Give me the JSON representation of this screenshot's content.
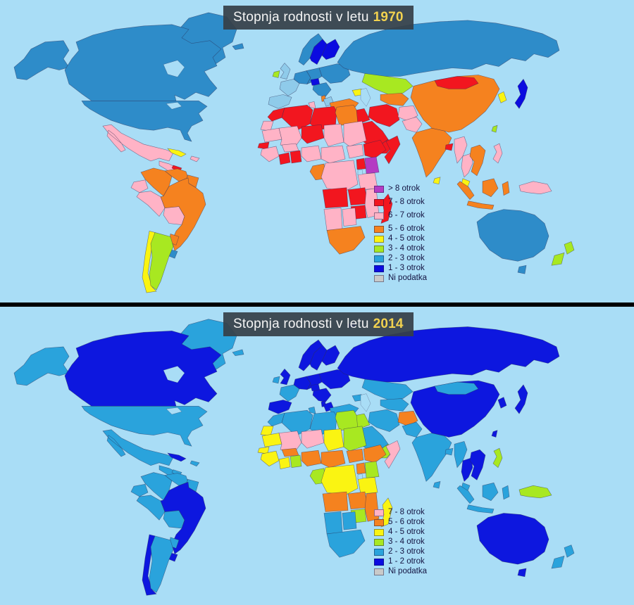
{
  "ocean_color": "#A9DDF6",
  "divider_color": "#000000",
  "title_bar": {
    "bg": "rgba(54,64,72,0.93)",
    "text_color": "#F4F4F4",
    "year_color": "#F2D24F"
  },
  "maps": [
    {
      "year": "1970",
      "title_prefix": "Stopnja rodnosti v letu",
      "legend": [
        {
          "key": "gt8",
          "label": "> 8 otrok",
          "color": "#B43BC3"
        },
        {
          "key": "c78",
          "label": "7 - 8 otrok",
          "color": "#F2161F"
        },
        {
          "key": "c67",
          "label": "6 - 7 otrok",
          "color": "#FFB3C6"
        },
        {
          "key": "c56",
          "label": "5 - 6 otrok",
          "color": "#F5821F"
        },
        {
          "key": "c45",
          "label": "4 - 5 otrok",
          "color": "#FAF412"
        },
        {
          "key": "c34",
          "label": "3 - 4 otrok",
          "color": "#A8E821"
        },
        {
          "key": "c23",
          "label": "2 - 3 otrok",
          "color": "#2AA3DC"
        },
        {
          "key": "c13",
          "label": "1 - 3 otrok",
          "color": "#0B0BE0"
        },
        {
          "key": "nd",
          "label": "Ni podatka",
          "color": "#C9C9C9"
        }
      ],
      "palette": {
        "gt8": "#B43BC3",
        "c78": "#F2161F",
        "c67": "#FFB3C6",
        "c56": "#F5821F",
        "c45": "#FAF412",
        "c34": "#A8E821",
        "c23": "#2E8CC9",
        "c23l": "#8FCBEA",
        "c13": "#0B0BE0",
        "nd": "#C9C9C9"
      },
      "regions": {
        "greenland": "c23",
        "alaska": "c23",
        "canada": "c23",
        "usa": "c23",
        "mexico": "c67",
        "central-america": "c67",
        "honduras": "c78",
        "nicaragua": "c45",
        "cuba": "c45",
        "hispaniola": "c67",
        "colombia": "c56",
        "venezuela": "c56",
        "guyanas": "c56",
        "ecuador": "c67",
        "peru": "c67",
        "bolivia": "c67",
        "brazil": "c56",
        "paraguay": "c56",
        "uruguay": "c23",
        "chile": "c45",
        "argentina": "c34",
        "iceland": "c23",
        "uk": "c23l",
        "ireland": "c34",
        "norway": "c23",
        "sweden": "c13",
        "finland": "c13",
        "france": "c23l",
        "iberia": "c23l",
        "germany": "c23",
        "central-europe": "c23",
        "hungary-czechia": "c13",
        "eastern-europe": "c23",
        "balkans": "c23",
        "albania": "c56",
        "greece": "c23l",
        "svalbard": "c23",
        "franz-josef": "c23",
        "russia": "c23",
        "kazakhstan": "c34",
        "central-asia": "c56",
        "caucasus": "c45",
        "turkey": "c56",
        "iraq-syria": "c78",
        "iran": "c78",
        "afghanistan": "c67",
        "pakistan": "c67",
        "saudi-arabia": "c78",
        "yemen-oman": "c78",
        "india": "c56",
        "bangladesh": "c78",
        "sri-lanka": "c45",
        "myanmar": "c67",
        "thailand": "c67",
        "indochina": "c56",
        "malaysia": "c45",
        "china": "c56",
        "mongolia": "c78",
        "korea": "c45",
        "japan": "c13",
        "taiwan": "c34",
        "philippines": "c67",
        "indonesia": "c56",
        "borneo": "c56",
        "sulawesi": "c56",
        "new-guinea": "c67",
        "australia": "c23",
        "tasmania": "c23",
        "new-zealand": "c34",
        "morocco": "c78",
        "algeria": "c78",
        "tunisia": "c67",
        "libya": "c78",
        "egypt": "c56",
        "western-sahara": "c67",
        "mauritania": "c67",
        "mali": "c67",
        "niger": "c78",
        "chad": "c67",
        "sudan": "c67",
        "senegal": "c78",
        "guinea": "c67",
        "ivory-coast": "c78",
        "ghana": "c78",
        "burkina-faso": "c67",
        "nigeria": "c67",
        "cameroon-car": "c67",
        "south-sudan": "c67",
        "ethiopia": "c78",
        "somalia": "c78",
        "kenya": "gt8",
        "uganda": "c78",
        "gabon-congo": "c56",
        "dr-congo": "c67",
        "tanzania": "c67",
        "angola": "c78",
        "zambia": "c78",
        "mozambique": "c67",
        "zimbabwe": "c78",
        "namibia": "c67",
        "botswana": "c67",
        "south-africa": "c56",
        "madagascar": "c78"
      }
    },
    {
      "year": "2014",
      "title_prefix": "Stopnja rodnosti v letu",
      "legend": [
        {
          "key": "c78",
          "label": "7 - 8 otrok",
          "color": "#FFB3C6"
        },
        {
          "key": "c56",
          "label": "5 - 6 otrok",
          "color": "#F5821F"
        },
        {
          "key": "c45",
          "label": "4 - 5 otrok",
          "color": "#FAF412"
        },
        {
          "key": "c34",
          "label": "3 - 4 otrok",
          "color": "#A8E821"
        },
        {
          "key": "c23",
          "label": "2 - 3 otrok",
          "color": "#2AA3DC"
        },
        {
          "key": "c12",
          "label": "1 - 2 otrok",
          "color": "#0B0BE0"
        },
        {
          "key": "nd",
          "label": "Ni podatka",
          "color": "#C9C9C9"
        }
      ],
      "palette": {
        "c78": "#FFB3C6",
        "c56": "#F5821F",
        "c45": "#FAF412",
        "c34": "#A8E821",
        "c23": "#2AA3DC",
        "c23l": "#2AA3DC",
        "c12": "#0D17DF",
        "c13": "#0D17DF",
        "nd": "#C9C9C9"
      },
      "regions": {
        "greenland": "c23",
        "alaska": "c23",
        "canada": "c12",
        "usa": "c23",
        "mexico": "c23",
        "central-america": "c23",
        "honduras": "c23",
        "nicaragua": "c23",
        "cuba": "c12",
        "hispaniola": "c23",
        "colombia": "c23",
        "venezuela": "c23",
        "guyanas": "c23",
        "ecuador": "c23",
        "peru": "c23",
        "bolivia": "c23",
        "brazil": "c12",
        "paraguay": "c23",
        "uruguay": "c12",
        "chile": "c12",
        "argentina": "c23",
        "iceland": "c23",
        "uk": "c12",
        "ireland": "c23",
        "norway": "c12",
        "sweden": "c12",
        "finland": "c12",
        "france": "c23",
        "iberia": "c12",
        "germany": "c12",
        "central-europe": "c12",
        "hungary-czechia": "c12",
        "eastern-europe": "c12",
        "balkans": "c12",
        "albania": "c12",
        "greece": "c12",
        "svalbard": "c12",
        "franz-josef": "c12",
        "russia": "c12",
        "kazakhstan": "c23",
        "central-asia": "c23",
        "caucasus": "c23",
        "turkey": "c23",
        "iraq-syria": "c34",
        "iran": "c23",
        "afghanistan": "c56",
        "pakistan": "c23",
        "saudi-arabia": "c23",
        "yemen-oman": "c34",
        "india": "c23",
        "bangladesh": "c23",
        "sri-lanka": "c23",
        "myanmar": "c23",
        "thailand": "c12",
        "indochina": "c12",
        "malaysia": "c23",
        "china": "c12",
        "mongolia": "c23",
        "korea": "c12",
        "japan": "c12",
        "taiwan": "c12",
        "philippines": "c34",
        "indonesia": "c23",
        "borneo": "c23",
        "sulawesi": "c23",
        "new-guinea": "c34",
        "australia": "c12",
        "tasmania": "c12",
        "new-zealand": "c23",
        "morocco": "c23",
        "algeria": "c23",
        "tunisia": "c23",
        "libya": "c23",
        "egypt": "c34",
        "western-sahara": "c45",
        "mauritania": "c45",
        "mali": "c78",
        "niger": "c78",
        "chad": "c45",
        "sudan": "c34",
        "senegal": "c45",
        "guinea": "c45",
        "ivory-coast": "c45",
        "ghana": "c34",
        "burkina-faso": "c56",
        "nigeria": "c56",
        "cameroon-car": "c56",
        "south-sudan": "c56",
        "ethiopia": "c56",
        "somalia": "c78",
        "kenya": "c34",
        "uganda": "c56",
        "gabon-congo": "c34",
        "dr-congo": "c45",
        "tanzania": "c45",
        "angola": "c56",
        "zambia": "c56",
        "mozambique": "c56",
        "zimbabwe": "c34",
        "namibia": "c23",
        "botswana": "c23",
        "south-africa": "c23",
        "madagascar": "c45"
      }
    }
  ]
}
